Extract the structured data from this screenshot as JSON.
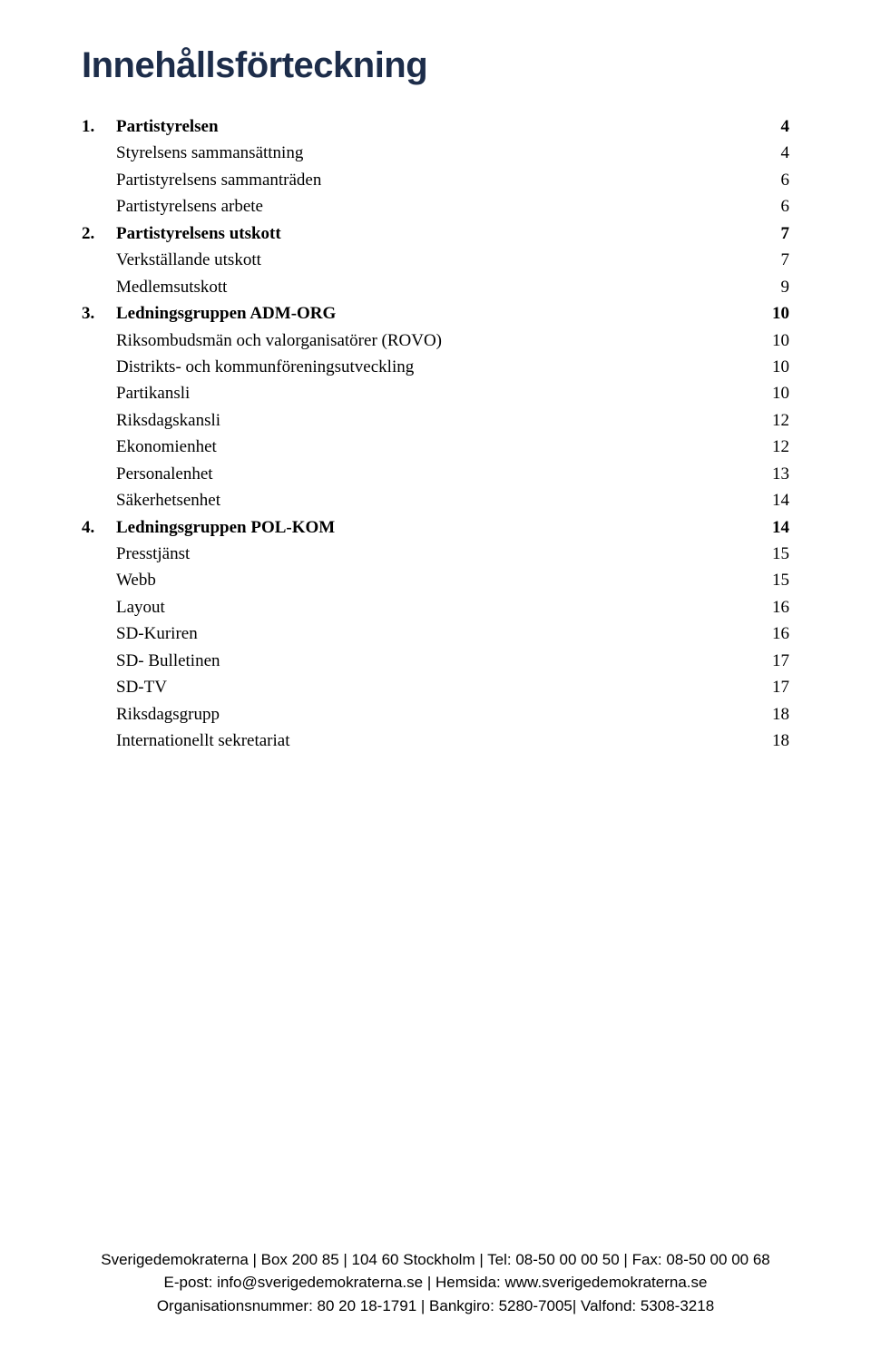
{
  "title": "Innehållsförteckning",
  "title_color": "#1d2d4a",
  "title_fontsize": 40,
  "body_fontsize": 19,
  "footer_fontsize": 17,
  "background_color": "#ffffff",
  "toc": [
    {
      "num": "1.",
      "label": "Partistyrelsen",
      "page": "4",
      "bold": true
    },
    {
      "num": "",
      "label": "Styrelsens sammansättning",
      "page": "4",
      "bold": false
    },
    {
      "num": "",
      "label": "Partistyrelsens sammanträden",
      "page": "6",
      "bold": false
    },
    {
      "num": "",
      "label": "Partistyrelsens arbete",
      "page": "6",
      "bold": false
    },
    {
      "num": "2.",
      "label": "Partistyrelsens utskott",
      "page": "7",
      "bold": true
    },
    {
      "num": "",
      "label": "Verkställande utskott",
      "page": "7",
      "bold": false
    },
    {
      "num": "",
      "label": "Medlemsutskott",
      "page": "9",
      "bold": false
    },
    {
      "num": "3.",
      "label": "Ledningsgruppen ADM-ORG",
      "page": "10",
      "bold": true
    },
    {
      "num": "",
      "label": "Riksombudsmän och valorganisatörer (ROVO)",
      "page": "10",
      "bold": false
    },
    {
      "num": "",
      "label": "Distrikts- och kommunföreningsutveckling",
      "page": "10",
      "bold": false
    },
    {
      "num": "",
      "label": "Partikansli",
      "page": "10",
      "bold": false
    },
    {
      "num": "",
      "label": "Riksdagskansli",
      "page": "12",
      "bold": false
    },
    {
      "num": "",
      "label": "Ekonomienhet",
      "page": "12",
      "bold": false
    },
    {
      "num": "",
      "label": "Personalenhet",
      "page": "13",
      "bold": false
    },
    {
      "num": "",
      "label": "Säkerhetsenhet",
      "page": "14",
      "bold": false
    },
    {
      "num": "4.",
      "label": "Ledningsgruppen POL-KOM",
      "page": "14",
      "bold": true
    },
    {
      "num": "",
      "label": "Presstjänst",
      "page": "15",
      "bold": false
    },
    {
      "num": "",
      "label": "Webb",
      "page": "15",
      "bold": false
    },
    {
      "num": "",
      "label": "Layout",
      "page": "16",
      "bold": false
    },
    {
      "num": "",
      "label": "SD-Kuriren",
      "page": "16",
      "bold": false
    },
    {
      "num": "",
      "label": "SD- Bulletinen",
      "page": "17",
      "bold": false
    },
    {
      "num": "",
      "label": "SD-TV",
      "page": "17",
      "bold": false
    },
    {
      "num": "",
      "label": "Riksdagsgrupp",
      "page": "18",
      "bold": false
    },
    {
      "num": "",
      "label": "Internationellt sekretariat",
      "page": "18",
      "bold": false
    }
  ],
  "footer": {
    "line1": "Sverigedemokraterna | Box 200 85 | 104 60 Stockholm | Tel: 08-50 00 00 50 | Fax: 08-50 00 00 68",
    "line2": "E-post: info@sverigedemokraterna.se | Hemsida: www.sverigedemokraterna.se",
    "line3": "Organisationsnummer: 80 20 18-1791 | Bankgiro: 5280-7005| Valfond: 5308-3218"
  }
}
